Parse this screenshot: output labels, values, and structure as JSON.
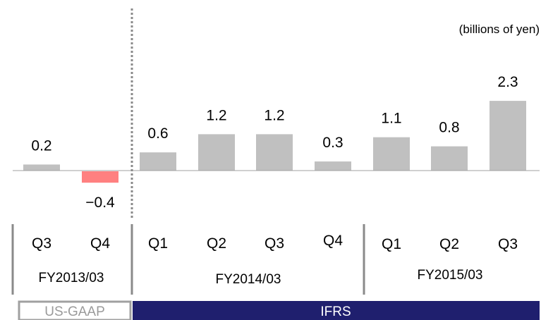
{
  "chart_data": {
    "type": "bar",
    "unit_label": "(billions of yen)",
    "bars": [
      {
        "quarter": "Q3",
        "fiscal_year": "FY2013/03",
        "value": 0.2,
        "label": "0.2"
      },
      {
        "quarter": "Q4",
        "fiscal_year": "FY2013/03",
        "value": -0.4,
        "label": "−0.4"
      },
      {
        "quarter": "Q1",
        "fiscal_year": "FY2014/03",
        "value": 0.6,
        "label": "0.6"
      },
      {
        "quarter": "Q2",
        "fiscal_year": "FY2014/03",
        "value": 1.2,
        "label": "1.2"
      },
      {
        "quarter": "Q3",
        "fiscal_year": "FY2014/03",
        "value": 1.2,
        "label": "1.2"
      },
      {
        "quarter": "Q4",
        "fiscal_year": "FY2014/03",
        "value": 0.3,
        "label": "0.3"
      },
      {
        "quarter": "Q1",
        "fiscal_year": "FY2015/03",
        "value": 1.1,
        "label": "1.1"
      },
      {
        "quarter": "Q2",
        "fiscal_year": "FY2015/03",
        "value": 0.8,
        "label": "0.8"
      },
      {
        "quarter": "Q3",
        "fiscal_year": "FY2015/03",
        "value": 2.3,
        "label": "2.3"
      }
    ],
    "fiscal_years": [
      "FY2013/03",
      "FY2014/03",
      "FY2015/03"
    ],
    "accounting_standards": [
      {
        "label": "US-GAAP",
        "fiscal_year": "FY2013/03"
      },
      {
        "label": "IFRS",
        "fiscal_years": [
          "FY2014/03",
          "FY2015/03"
        ]
      }
    ],
    "colors": {
      "positive_bar": "#c0c0c0",
      "negative_bar": "#ff8080",
      "ifrs_band": "#1f1f6e",
      "us_gaap_border": "#a0a0a0",
      "separator": "#8a8a8a"
    }
  }
}
